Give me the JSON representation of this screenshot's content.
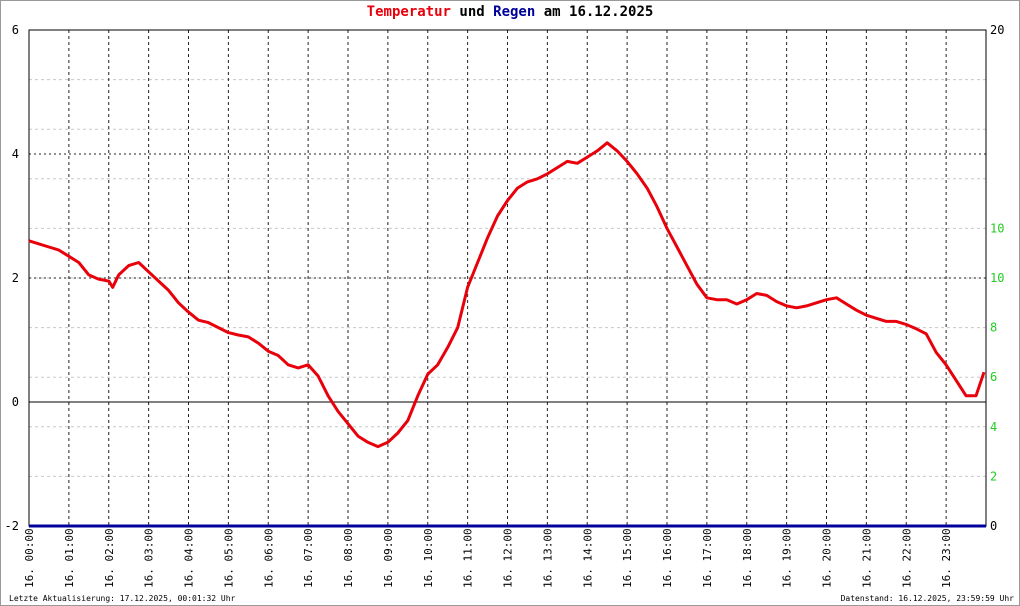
{
  "chart_data": {
    "type": "line",
    "title": {
      "part1": "Temperatur",
      "part2": "und",
      "part3": "Regen",
      "part4": "am 16.12.2025"
    },
    "colors": {
      "temperature": "#e8000b",
      "rain": "#00009a",
      "right_axis_ticks": "#22cc22",
      "title_middle": "#000000"
    },
    "x_range_hours": [
      0,
      24
    ],
    "x_ticks": [
      "16. 00:00",
      "16. 01:00",
      "16. 02:00",
      "16. 03:00",
      "16. 04:00",
      "16. 05:00",
      "16. 06:00",
      "16. 07:00",
      "16. 08:00",
      "16. 09:00",
      "16. 10:00",
      "16. 11:00",
      "16. 12:00",
      "16. 13:00",
      "16. 14:00",
      "16. 15:00",
      "16. 16:00",
      "16. 17:00",
      "16. 18:00",
      "16. 19:00",
      "16. 20:00",
      "16. 21:00",
      "16. 22:00",
      "16. 23:00"
    ],
    "ylim_left": [
      -2,
      6
    ],
    "left_ticks": [
      "-2",
      "0",
      "2",
      "4",
      "6"
    ],
    "ylim_right": [
      0,
      20
    ],
    "right_ticks": [
      "0",
      "2",
      "4",
      "6",
      "8",
      "10",
      "10",
      "20"
    ],
    "grid": true,
    "series": [
      {
        "name": "Temperatur",
        "x": [
          0,
          0.25,
          0.5,
          0.75,
          1,
          1.25,
          1.5,
          1.75,
          2,
          2.1,
          2.25,
          2.5,
          2.75,
          3,
          3.25,
          3.5,
          3.75,
          4,
          4.25,
          4.5,
          4.75,
          5,
          5.25,
          5.5,
          5.75,
          6,
          6.25,
          6.5,
          6.75,
          7,
          7.25,
          7.5,
          7.75,
          8,
          8.25,
          8.5,
          8.75,
          9,
          9.25,
          9.5,
          9.75,
          10,
          10.25,
          10.5,
          10.75,
          11,
          11.25,
          11.5,
          11.75,
          12,
          12.25,
          12.5,
          12.75,
          13,
          13.25,
          13.5,
          13.75,
          14,
          14.25,
          14.5,
          14.75,
          15,
          15.25,
          15.5,
          15.75,
          16,
          16.25,
          16.5,
          16.75,
          17,
          17.25,
          17.5,
          17.75,
          18,
          18.25,
          18.5,
          18.75,
          19,
          19.25,
          19.5,
          19.75,
          20,
          20.25,
          20.5,
          20.75,
          21,
          21.25,
          21.5,
          21.75,
          22,
          22.25,
          22.5,
          22.75,
          23,
          23.25,
          23.5,
          23.75,
          23.95
        ],
        "values": [
          2.6,
          2.55,
          2.5,
          2.45,
          2.35,
          2.25,
          2.05,
          1.98,
          1.95,
          1.85,
          2.05,
          2.2,
          2.25,
          2.1,
          1.95,
          1.8,
          1.6,
          1.45,
          1.32,
          1.28,
          1.2,
          1.12,
          1.08,
          1.05,
          0.95,
          0.82,
          0.75,
          0.6,
          0.55,
          0.6,
          0.42,
          0.1,
          -0.15,
          -0.35,
          -0.55,
          -0.65,
          -0.72,
          -0.65,
          -0.5,
          -0.3,
          0.1,
          0.45,
          0.6,
          0.88,
          1.2,
          1.85,
          2.25,
          2.65,
          3.0,
          3.25,
          3.45,
          3.55,
          3.6,
          3.68,
          3.78,
          3.88,
          3.85,
          3.95,
          4.05,
          4.18,
          4.05,
          3.88,
          3.68,
          3.45,
          3.15,
          2.8,
          2.5,
          2.2,
          1.9,
          1.68,
          1.65,
          1.65,
          1.58,
          1.65,
          1.75,
          1.72,
          1.62,
          1.55,
          1.52,
          1.55,
          1.6,
          1.65,
          1.68,
          1.58,
          1.48,
          1.4,
          1.35,
          1.3,
          1.3,
          1.25,
          1.18,
          1.1,
          0.8,
          0.6,
          0.35,
          0.1,
          0.1,
          0.48
        ]
      },
      {
        "name": "Regen",
        "x": [
          0,
          24
        ],
        "values": [
          0,
          0
        ]
      }
    ]
  },
  "footer": {
    "left": "Letzte Aktualisierung: 17.12.2025, 00:01:32 Uhr",
    "right": "Datenstand: 16.12.2025, 23:59:59 Uhr"
  }
}
